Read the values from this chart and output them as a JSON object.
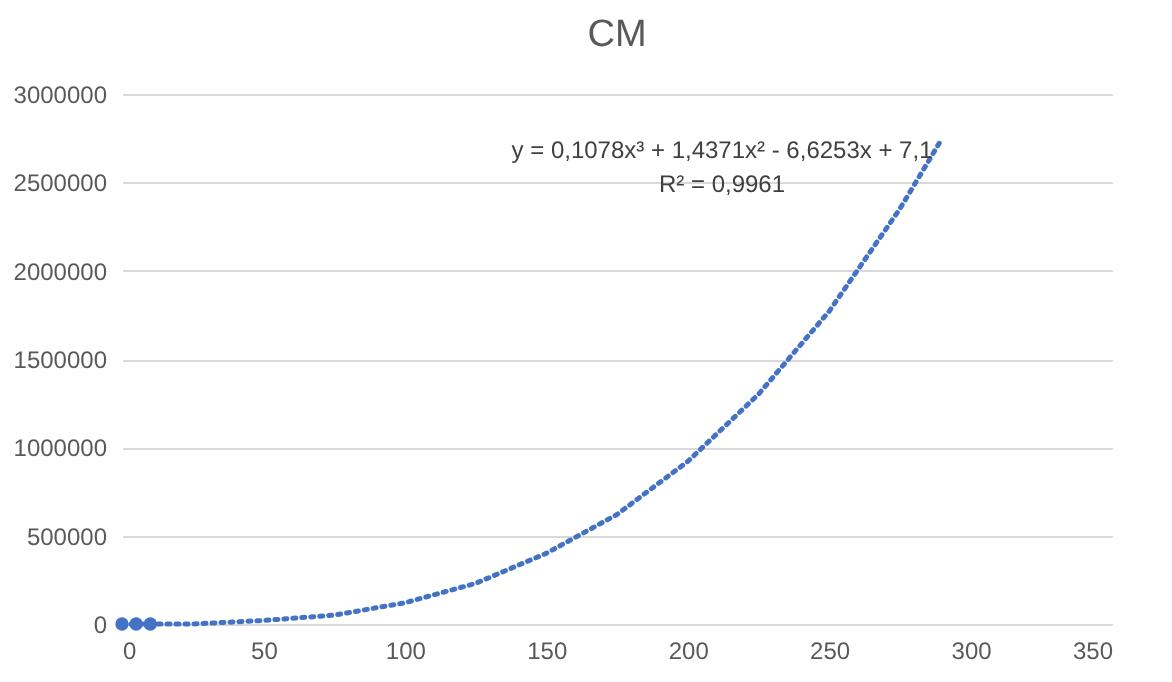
{
  "chart_data": {
    "type": "scatter",
    "title": "CM",
    "annotations": [
      "y = 0,1078x³ + 1,4371x² - 6,6253x + 7,1",
      "R² = 0,9961"
    ],
    "xlim": [
      0,
      350
    ],
    "xticks": [
      0,
      50,
      100,
      150,
      200,
      250,
      300,
      350
    ],
    "ylim": [
      0,
      3000000
    ],
    "yticks": [
      0,
      500000,
      1000000,
      1500000,
      2000000,
      2500000,
      3000000
    ],
    "grid": "y",
    "series": [
      {
        "color": "#4472c4",
        "marker": "circle",
        "x": [
          0,
          5,
          10
        ],
        "values": [
          0,
          0,
          0
        ]
      },
      {
        "type": "line",
        "color": "#4472c4",
        "line_style": "dotted",
        "x": [
          0,
          25,
          50,
          75,
          100,
          125,
          150,
          175,
          200,
          225,
          250,
          275,
          290
        ],
        "values": [
          0,
          0,
          20000,
          50000,
          120000,
          230000,
          400000,
          620000,
          920000,
          1300000,
          1770000,
          2350000,
          2750000
        ]
      }
    ]
  }
}
